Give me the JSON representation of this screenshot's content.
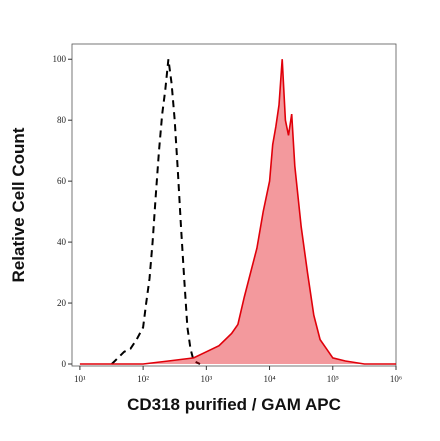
{
  "chart_data": {
    "type": "histogram-overlay",
    "x_label": "CD318 purified / GAM APC",
    "y_label": "Relative Cell Count",
    "log_x": true,
    "xlim": [
      7.5,
      1000000
    ],
    "ylim": [
      0,
      105
    ],
    "xticks": [
      {
        "value": 10,
        "label": "10¹"
      },
      {
        "value": 100,
        "label": "10²"
      },
      {
        "value": 1000,
        "label": "10³"
      },
      {
        "value": 10000,
        "label": "10⁴"
      },
      {
        "value": 100000,
        "label": "10⁵"
      },
      {
        "value": 1000000,
        "label": "10⁶"
      }
    ],
    "yticks": [
      0,
      20,
      40,
      60,
      80,
      100
    ],
    "series": [
      {
        "color": "#000000",
        "style": "dashed",
        "fill": false,
        "x": [
          32,
          40,
          50,
          63,
          79,
          100,
          112,
          126,
          141,
          158,
          178,
          200,
          224,
          251,
          282,
          316,
          355,
          398,
          447,
          501,
          562,
          631,
          794
        ],
        "values": [
          0,
          2,
          4,
          5,
          8,
          12,
          20,
          28,
          40,
          55,
          70,
          82,
          90,
          100,
          92,
          80,
          63,
          45,
          28,
          12,
          5,
          1,
          0
        ]
      },
      {
        "color": "#e0000a",
        "style": "solid",
        "fill": true,
        "x": [
          10,
          100,
          251,
          631,
          1000,
          1585,
          2512,
          3162,
          3981,
          5012,
          6310,
          7943,
          10000,
          11220,
          12589,
          14125,
          15849,
          17783,
          19953,
          22387,
          25119,
          31623,
          39811,
          50119,
          63096,
          79433,
          100000,
          158489,
          316228,
          1000000
        ],
        "values": [
          0,
          0,
          1,
          2,
          4,
          6,
          10,
          13,
          22,
          30,
          38,
          50,
          60,
          72,
          78,
          85,
          100,
          80,
          75,
          82,
          65,
          45,
          30,
          16,
          8,
          5,
          2,
          1,
          0,
          0
        ]
      }
    ]
  }
}
